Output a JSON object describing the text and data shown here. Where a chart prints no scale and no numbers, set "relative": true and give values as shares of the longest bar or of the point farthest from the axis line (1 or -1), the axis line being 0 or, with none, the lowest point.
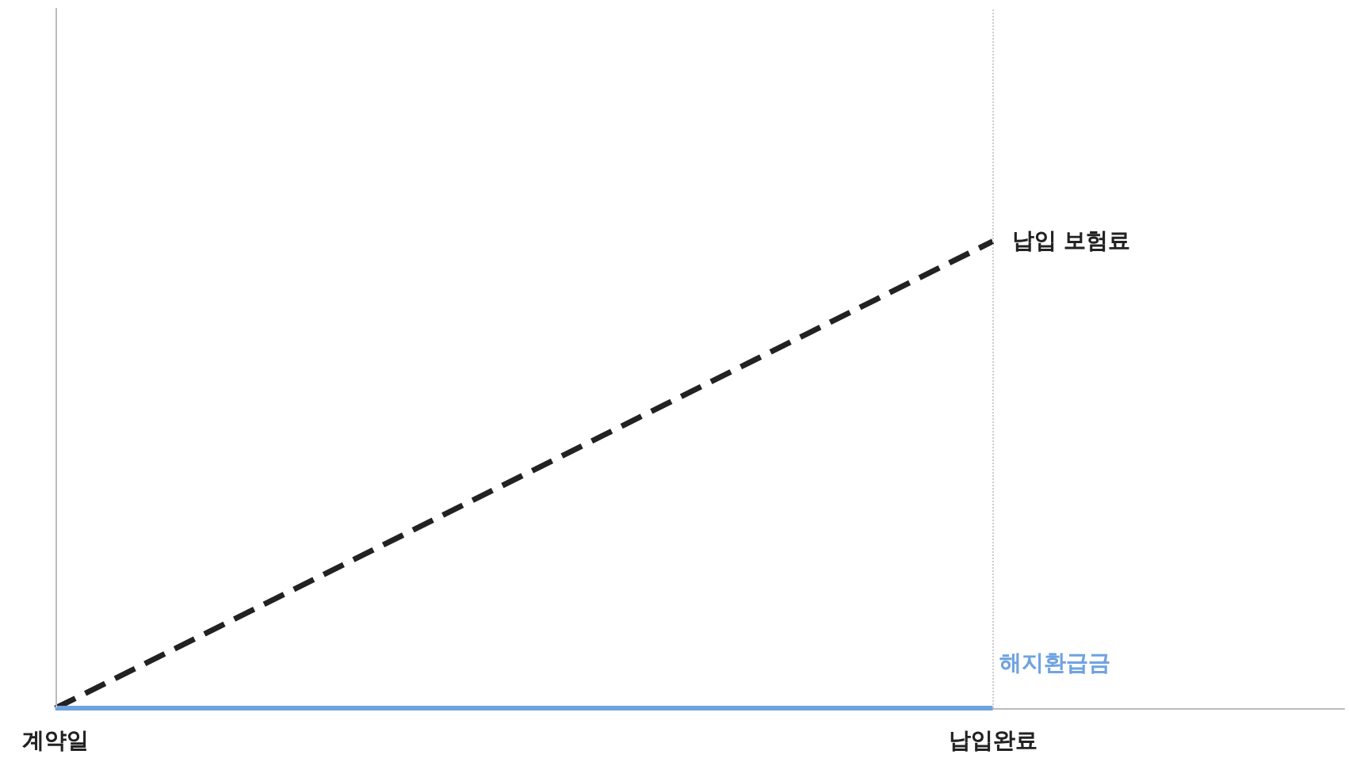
{
  "chart_data": {
    "type": "line",
    "relative": true,
    "categories": [
      "계약일",
      null,
      null,
      null,
      null,
      null,
      null,
      null,
      "납입완료",
      null,
      null,
      null
    ],
    "grid": false,
    "legend": false,
    "marker": "none",
    "series": [
      {
        "name": "납입 보험료",
        "color": "#222222",
        "values": [
          0,
          0.125,
          0.25,
          0.375,
          0.5,
          0.625,
          0.75,
          0.875,
          1,
          null,
          null,
          null
        ],
        "line_style": "dashed"
      },
      {
        "name": "해지환급금",
        "color": "#6fa3e0",
        "values": [
          0,
          0,
          0,
          0,
          0,
          0,
          0,
          0,
          0,
          null,
          null,
          null
        ],
        "line_style": "solid"
      }
    ],
    "ref_lines": [
      {
        "axis": "x",
        "value": "계약일",
        "label": null,
        "color": "#bbbbbb",
        "line_style": "solid"
      },
      {
        "axis": "x",
        "value": "납입완료",
        "label": null,
        "color": "#cccccc",
        "line_style": "dotted"
      }
    ]
  }
}
